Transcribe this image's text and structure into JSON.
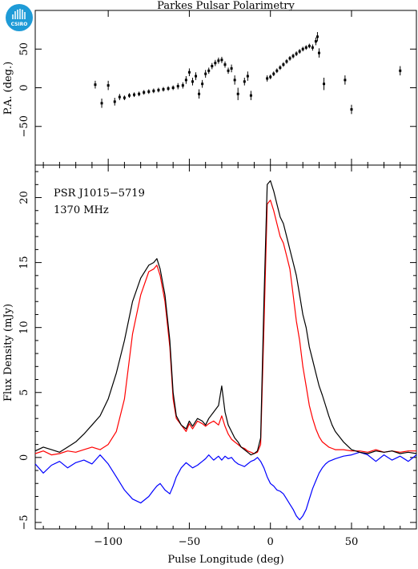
{
  "title": "Parkes Pulsar Polarimetry",
  "logo": {
    "text": "CSIRO",
    "color": "#1e9bd7"
  },
  "annotations": [
    "PSR J1015−5719",
    "1370 MHz"
  ],
  "colors": {
    "total": "#000000",
    "linear": "#ff0000",
    "circular": "#0000ff"
  },
  "chart_data": [
    {
      "type": "scatter",
      "ylabel": "P.A. (deg.)",
      "xlim": [
        -145,
        90
      ],
      "ylim": [
        -100,
        100
      ],
      "yticks": [
        -50,
        0,
        50
      ],
      "xticks": [
        -100,
        -50,
        0,
        50
      ],
      "ytick_labels": [
        "−50",
        "0",
        "50"
      ],
      "grid": false,
      "points": [
        [
          -108,
          4,
          5
        ],
        [
          -104,
          -20,
          6
        ],
        [
          -100,
          3,
          6
        ],
        [
          -96,
          -18,
          5
        ],
        [
          -93,
          -12,
          4
        ],
        [
          -90,
          -13,
          3
        ],
        [
          -87,
          -10,
          3
        ],
        [
          -84,
          -9,
          3
        ],
        [
          -81,
          -8,
          3
        ],
        [
          -78,
          -6,
          3
        ],
        [
          -75,
          -5,
          3
        ],
        [
          -72,
          -4,
          3
        ],
        [
          -69,
          -3,
          3
        ],
        [
          -66,
          -2,
          3
        ],
        [
          -63,
          -1,
          3
        ],
        [
          -60,
          0,
          3
        ],
        [
          -57,
          2,
          4
        ],
        [
          -54,
          3,
          4
        ],
        [
          -52,
          10,
          5
        ],
        [
          -50,
          20,
          5
        ],
        [
          -48,
          8,
          5
        ],
        [
          -46,
          15,
          5
        ],
        [
          -44,
          -8,
          6
        ],
        [
          -42,
          5,
          5
        ],
        [
          -40,
          18,
          5
        ],
        [
          -38,
          22,
          4
        ],
        [
          -36,
          28,
          4
        ],
        [
          -34,
          32,
          4
        ],
        [
          -32,
          35,
          4
        ],
        [
          -30,
          36,
          4
        ],
        [
          -28,
          30,
          4
        ],
        [
          -26,
          22,
          4
        ],
        [
          -24,
          25,
          5
        ],
        [
          -22,
          10,
          6
        ],
        [
          -20,
          -8,
          8
        ],
        [
          -16,
          8,
          5
        ],
        [
          -14,
          15,
          6
        ],
        [
          -12,
          -10,
          6
        ],
        [
          -2,
          12,
          4
        ],
        [
          0,
          14,
          3
        ],
        [
          2,
          18,
          3
        ],
        [
          4,
          22,
          3
        ],
        [
          6,
          26,
          3
        ],
        [
          8,
          30,
          3
        ],
        [
          10,
          34,
          3
        ],
        [
          12,
          38,
          3
        ],
        [
          14,
          41,
          3
        ],
        [
          16,
          44,
          3
        ],
        [
          18,
          47,
          3
        ],
        [
          20,
          50,
          3
        ],
        [
          22,
          52,
          3
        ],
        [
          24,
          54,
          3
        ],
        [
          26,
          52,
          4
        ],
        [
          28,
          60,
          5
        ],
        [
          29,
          66,
          6
        ],
        [
          30,
          45,
          6
        ],
        [
          33,
          5,
          8
        ],
        [
          46,
          10,
          6
        ],
        [
          50,
          -28,
          6
        ],
        [
          80,
          22,
          6
        ]
      ]
    },
    {
      "type": "line",
      "xlabel": "Pulse Longitude (deg)",
      "ylabel": "Flux Density (mJy)",
      "xlim": [
        -145,
        90
      ],
      "ylim": [
        -5.5,
        22.5
      ],
      "yticks": [
        -5,
        0,
        5,
        10,
        15,
        20
      ],
      "ytick_labels": [
        "−5",
        "0",
        "5",
        "10",
        "15",
        "20"
      ],
      "xticks": [
        -100,
        -50,
        0,
        50
      ],
      "xtick_labels": [
        "−100",
        "−50",
        "0",
        "50"
      ],
      "grid": false,
      "x": [
        -145,
        -140,
        -135,
        -130,
        -125,
        -120,
        -115,
        -110,
        -105,
        -100,
        -95,
        -90,
        -85,
        -80,
        -75,
        -72,
        -70,
        -68,
        -65,
        -62,
        -60,
        -58,
        -55,
        -52,
        -50,
        -48,
        -45,
        -42,
        -40,
        -38,
        -35,
        -32,
        -30,
        -28,
        -26,
        -24,
        -22,
        -20,
        -18,
        -16,
        -14,
        -12,
        -10,
        -8,
        -6,
        -4,
        -2,
        0,
        2,
        4,
        6,
        8,
        10,
        12,
        14,
        16,
        18,
        20,
        22,
        24,
        26,
        28,
        30,
        32,
        34,
        36,
        38,
        40,
        45,
        50,
        55,
        60,
        65,
        70,
        75,
        80,
        85,
        90
      ],
      "series": [
        {
          "role": "total",
          "values": [
            0.5,
            0.8,
            0.6,
            0.4,
            0.8,
            1.2,
            1.8,
            2.5,
            3.2,
            4.5,
            6.5,
            9.0,
            12.0,
            13.8,
            14.8,
            15.0,
            15.3,
            14.5,
            12.5,
            9.0,
            5.0,
            3.2,
            2.5,
            2.2,
            2.8,
            2.4,
            3.0,
            2.8,
            2.5,
            3.0,
            3.5,
            4.0,
            5.5,
            3.5,
            2.5,
            2.0,
            1.5,
            1.2,
            0.8,
            0.6,
            0.4,
            0.2,
            0.3,
            0.5,
            1.5,
            12.0,
            21.0,
            21.3,
            20.5,
            19.5,
            18.5,
            18.0,
            17.0,
            16.0,
            15.0,
            14.0,
            12.5,
            11.0,
            10.0,
            8.5,
            7.5,
            6.5,
            5.5,
            4.8,
            4.0,
            3.2,
            2.5,
            2.0,
            1.2,
            0.6,
            0.4,
            0.3,
            0.5,
            0.4,
            0.5,
            0.3,
            0.4,
            0.3
          ]
        },
        {
          "role": "linear",
          "values": [
            0.3,
            0.5,
            0.2,
            0.3,
            0.5,
            0.4,
            0.6,
            0.8,
            0.6,
            1.0,
            2.0,
            4.5,
            9.5,
            12.5,
            14.3,
            14.5,
            14.8,
            14.0,
            12.0,
            8.5,
            4.5,
            3.0,
            2.5,
            2.0,
            2.6,
            2.2,
            2.8,
            2.6,
            2.4,
            2.6,
            2.8,
            2.5,
            3.2,
            2.4,
            1.8,
            1.4,
            1.2,
            1.0,
            0.8,
            0.7,
            0.5,
            0.4,
            0.3,
            0.4,
            1.0,
            10.0,
            19.5,
            19.8,
            19.0,
            18.0,
            17.0,
            16.5,
            15.5,
            14.5,
            12.5,
            10.5,
            9.0,
            7.0,
            5.5,
            4.0,
            3.0,
            2.2,
            1.6,
            1.2,
            1.0,
            0.8,
            0.7,
            0.6,
            0.6,
            0.5,
            0.5,
            0.4,
            0.6,
            0.4,
            0.5,
            0.4,
            0.5,
            0.5
          ]
        },
        {
          "role": "circular",
          "values": [
            -0.5,
            -1.2,
            -0.6,
            -0.3,
            -0.8,
            -0.4,
            -0.2,
            -0.5,
            0.2,
            -0.5,
            -1.5,
            -2.5,
            -3.2,
            -3.5,
            -3.0,
            -2.5,
            -2.2,
            -2.0,
            -2.5,
            -2.8,
            -2.2,
            -1.5,
            -0.8,
            -0.4,
            -0.6,
            -0.8,
            -0.6,
            -0.3,
            -0.1,
            0.2,
            -0.2,
            0.1,
            -0.2,
            0.1,
            -0.1,
            0.0,
            -0.3,
            -0.5,
            -0.6,
            -0.7,
            -0.5,
            -0.3,
            -0.2,
            0.0,
            -0.3,
            -0.8,
            -1.5,
            -2.0,
            -2.2,
            -2.5,
            -2.6,
            -2.8,
            -3.2,
            -3.6,
            -4.0,
            -4.5,
            -4.8,
            -4.5,
            -4.0,
            -3.2,
            -2.4,
            -1.8,
            -1.2,
            -0.8,
            -0.5,
            -0.3,
            -0.2,
            -0.1,
            0.1,
            0.2,
            0.4,
            0.2,
            -0.3,
            0.2,
            -0.2,
            0.1,
            -0.3,
            0.2
          ]
        }
      ]
    }
  ]
}
